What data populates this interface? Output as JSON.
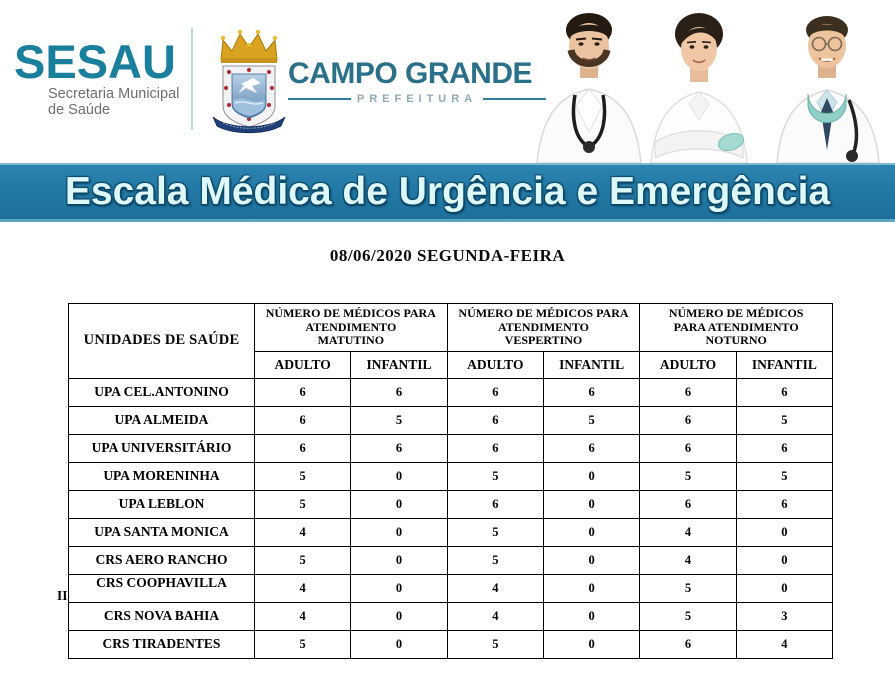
{
  "header": {
    "sesau": {
      "name": "SESAU",
      "subtitle_line1": "Secretaria Municipal",
      "subtitle_line2": "de Saúde"
    },
    "prefeitura": {
      "city": "CAMPO GRANDE",
      "label": "PREFEITURA"
    }
  },
  "banner": {
    "title": "Escala Médica de Urgência e Emergência"
  },
  "date_heading": "08/06/2020 SEGUNDA-FEIRA",
  "table": {
    "units_header": "UNIDADES DE SAÚDE",
    "groups": [
      {
        "id": "matutino",
        "lines": [
          "NÚMERO DE MÉDICOS PARA",
          "ATENDIMENTO",
          "MATUTINO"
        ]
      },
      {
        "id": "vespertino",
        "lines": [
          "NÚMERO DE MÉDICOS PARA",
          "ATENDIMENTO",
          "VESPERTINO"
        ]
      },
      {
        "id": "noturno",
        "lines": [
          "NÚMERO DE MÉDICOS",
          "PARA ATENDIMENTO",
          "NOTURNO"
        ]
      }
    ],
    "sub_headers": [
      "ADULTO",
      "INFANTIL"
    ],
    "rows": [
      {
        "unit": "UPA CEL.ANTONINO",
        "values": [
          6,
          6,
          6,
          6,
          6,
          6
        ]
      },
      {
        "unit": "UPA ALMEIDA",
        "values": [
          6,
          5,
          6,
          5,
          6,
          5
        ]
      },
      {
        "unit": "UPA UNIVERSITÁRIO",
        "values": [
          6,
          6,
          6,
          6,
          6,
          6
        ]
      },
      {
        "unit": "UPA MORENINHA",
        "values": [
          5,
          0,
          5,
          0,
          5,
          5
        ]
      },
      {
        "unit": "UPA LEBLON",
        "values": [
          5,
          0,
          6,
          0,
          6,
          6
        ]
      },
      {
        "unit": "UPA SANTA MONICA",
        "values": [
          4,
          0,
          5,
          0,
          4,
          0
        ]
      },
      {
        "unit": "CRS AERO RANCHO",
        "values": [
          5,
          0,
          5,
          0,
          4,
          0
        ]
      },
      {
        "unit": "CRS COOPHAVILLA II",
        "values": [
          4,
          0,
          4,
          0,
          5,
          0
        ]
      },
      {
        "unit": "CRS NOVA BAHIA",
        "values": [
          4,
          0,
          4,
          0,
          5,
          3
        ]
      },
      {
        "unit": "CRS TIRADENTES",
        "values": [
          5,
          0,
          5,
          0,
          6,
          4
        ]
      }
    ]
  },
  "colors": {
    "sesau_teal": "#1a7f9c",
    "campo_blue": "#2b7089",
    "banner_blue": "#2379a5",
    "banner_text": "#ddf8f8",
    "table_border": "#000000"
  }
}
